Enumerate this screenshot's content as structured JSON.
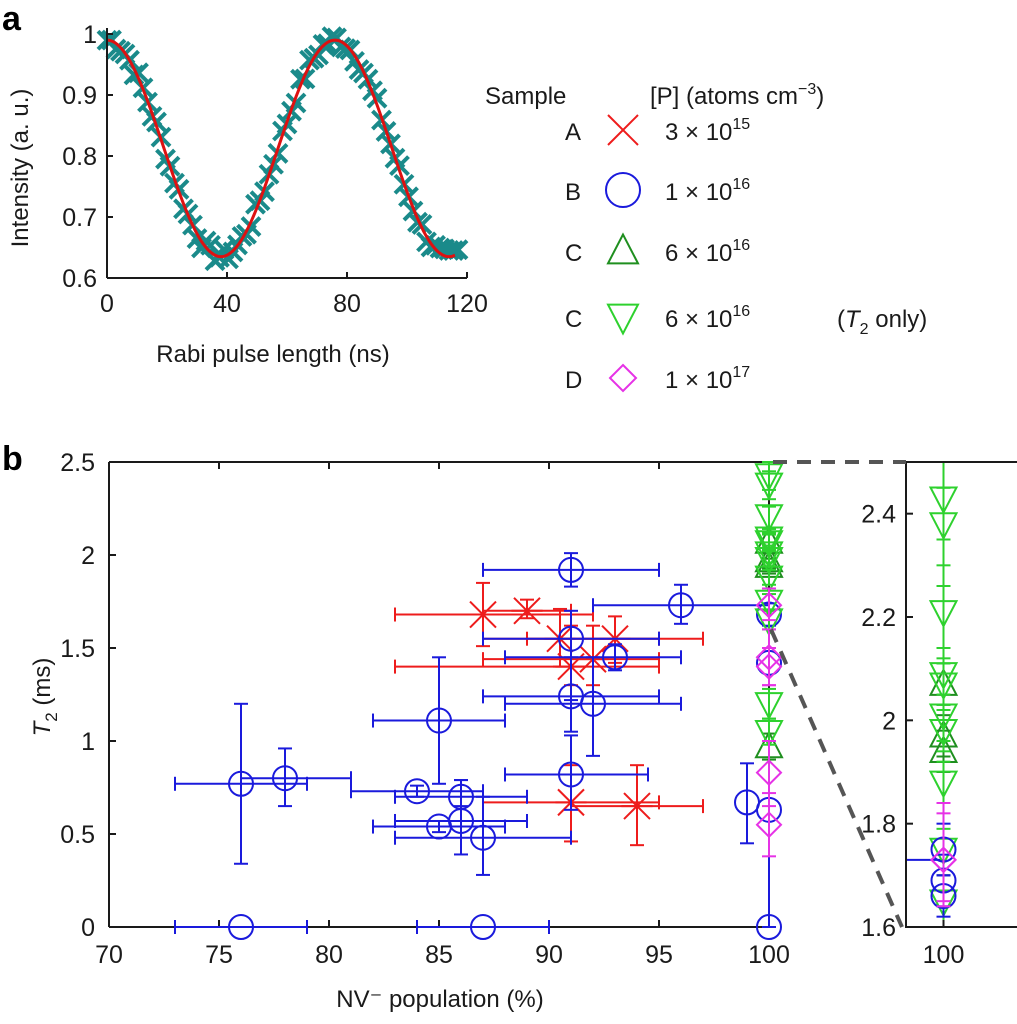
{
  "colors": {
    "sample_A": "#ee1c1c",
    "sample_B": "#1a1adc",
    "sample_C_up": "#1f8f1f",
    "sample_C_down": "#2ed12e",
    "sample_D": "#e632e6",
    "rabi_data": "#1a8a8a",
    "rabi_fit": "#dd1111",
    "axis": "#1a1a1a",
    "zoom_guide": "#555555"
  },
  "chart_data": [
    {
      "id": "a",
      "panel_label": "a",
      "type": "line",
      "title": "",
      "xlabel": "Rabi pulse length (ns)",
      "ylabel": "Intensity (a. u.)",
      "xlim": [
        0,
        120
      ],
      "ylim": [
        0.6,
        1.0
      ],
      "xticks": [
        0,
        40,
        80,
        120
      ],
      "xtick_labels": [
        "0",
        "40",
        "80",
        "120"
      ],
      "yticks": [
        0.6,
        0.7,
        0.8,
        0.9,
        1.0
      ],
      "ytick_labels": [
        "0.6",
        "0.7",
        "0.8",
        "0.9",
        "1"
      ],
      "grid": false,
      "series": [
        {
          "name": "Rabi data",
          "marker": "plus-x",
          "color_key": "rabi_data",
          "x_start": 0,
          "x_end": 117,
          "x_step": 1.5,
          "model": {
            "offset": 0.8125,
            "amplitude": 0.1775,
            "period_ns": 76,
            "scatter": 0.012
          }
        },
        {
          "name": "Fit",
          "marker": "none",
          "color_key": "rabi_fit",
          "x_start": 0,
          "x_end": 116,
          "model": {
            "offset": 0.8125,
            "amplitude": 0.1775,
            "period_ns": 76
          }
        }
      ]
    },
    {
      "id": "b",
      "panel_label": "b",
      "type": "scatter",
      "title": "",
      "xlabel": "NV⁻ population (%)",
      "ylabel_main": "T",
      "ylabel_sub": "2",
      "ylabel_unit": " (ms)",
      "xlim": [
        70,
        100
      ],
      "ylim": [
        0,
        2.5
      ],
      "xticks": [
        70,
        75,
        80,
        85,
        90,
        95,
        100
      ],
      "xtick_labels": [
        "70",
        "75",
        "80",
        "85",
        "90",
        "95",
        "100"
      ],
      "yticks": [
        0,
        0.5,
        1,
        1.5,
        2,
        2.5
      ],
      "ytick_labels": [
        "0",
        "0.5",
        "1",
        "1.5",
        "2",
        "2.5"
      ],
      "grid": false,
      "series": [
        {
          "name": "A",
          "marker": "x-star",
          "color_key": "sample_A",
          "points": [
            {
              "x": 87,
              "y": 1.68,
              "xerr": [
                83,
                92
              ],
              "yerr": [
                1.51,
                1.85
              ]
            },
            {
              "x": 89,
              "y": 1.7,
              "xerr": [
                87,
                91
              ],
              "yerr": [
                1.66,
                1.76
              ]
            },
            {
              "x": 90.5,
              "y": 1.55,
              "xerr": [
                87,
                97
              ],
              "yerr": [
                1.4,
                1.71
              ]
            },
            {
              "x": 92,
              "y": 1.44,
              "xerr": [
                87,
                95
              ],
              "yerr": [
                1.3,
                1.62
              ]
            },
            {
              "x": 93,
              "y": 1.55,
              "xerr": [
                89,
                95
              ],
              "yerr": [
                1.42,
                1.67
              ]
            },
            {
              "x": 91,
              "y": 1.4,
              "xerr": [
                83,
                95
              ],
              "yerr": [
                1.3,
                1.62
              ]
            },
            {
              "x": 91,
              "y": 0.67,
              "xerr": [
                87,
                95
              ],
              "yerr": [
                0.46,
                0.87
              ]
            },
            {
              "x": 94,
              "y": 0.65,
              "xerr": [
                91,
                97
              ],
              "yerr": [
                0.44,
                0.87
              ]
            }
          ]
        },
        {
          "name": "B",
          "marker": "circle",
          "color_key": "sample_B",
          "points": [
            {
              "x": 91,
              "y": 1.92,
              "xerr": [
                87,
                95
              ],
              "yerr": [
                1.83,
                2.01
              ]
            },
            {
              "x": 96,
              "y": 1.73,
              "xerr": [
                92,
                100
              ],
              "yerr": [
                1.63,
                1.84
              ]
            },
            {
              "x": 91,
              "y": 1.55,
              "xerr": [
                87,
                95
              ],
              "yerr": [
                1.22,
                1.7
              ]
            },
            {
              "x": 93,
              "y": 1.45,
              "xerr": [
                88,
                96
              ],
              "yerr": [
                1.38,
                1.52
              ]
            },
            {
              "x": 91,
              "y": 1.24,
              "xerr": [
                87,
                95
              ],
              "yerr": [
                1.05,
                1.45
              ]
            },
            {
              "x": 92,
              "y": 1.2,
              "xerr": [
                88,
                96
              ],
              "yerr": [
                0.92,
                1.45
              ]
            },
            {
              "x": 85,
              "y": 1.11,
              "xerr": [
                82,
                88
              ],
              "yerr": [
                0.77,
                1.45
              ]
            },
            {
              "x": 91,
              "y": 0.82,
              "xerr": [
                88,
                94.5
              ],
              "yerr": [
                0.63,
                1.03
              ]
            },
            {
              "x": 76,
              "y": 0.77,
              "xerr": [
                73,
                79
              ],
              "yerr": [
                0.34,
                1.2
              ]
            },
            {
              "x": 78,
              "y": 0.8,
              "xerr": [
                76,
                81
              ],
              "yerr": [
                0.65,
                0.96
              ]
            },
            {
              "x": 84,
              "y": 0.73,
              "xerr": [
                81,
                87
              ],
              "yerr": [
                0.7,
                0.76
              ]
            },
            {
              "x": 86,
              "y": 0.7,
              "xerr": [
                83,
                89
              ],
              "yerr": [
                0.65,
                0.79
              ]
            },
            {
              "x": 86,
              "y": 0.57,
              "xerr": [
                83,
                89
              ],
              "yerr": [
                0.39,
                0.79
              ]
            },
            {
              "x": 85,
              "y": 0.54,
              "xerr": [
                82,
                88
              ],
              "yerr": [
                0.51,
                0.57
              ]
            },
            {
              "x": 87,
              "y": 0.48,
              "xerr": [
                83,
                91
              ],
              "yerr": [
                0.28,
                0.7
              ]
            },
            {
              "x": 99,
              "y": 0.67,
              "xerr": [
                99,
                99
              ],
              "yerr": [
                0.45,
                0.88
              ]
            },
            {
              "x": 100,
              "y": 0.63,
              "xerr": [
                100,
                100
              ],
              "yerr": [
                0.63,
                0.63
              ]
            },
            {
              "x": 100,
              "y": 1.68,
              "xerr": [
                100,
                100
              ],
              "yerr": [
                1.62,
                1.74
              ]
            },
            {
              "x": 100,
              "y": 1.42,
              "xerr": [
                100,
                100
              ],
              "yerr": [
                1.42,
                1.42
              ]
            },
            {
              "x": 76,
              "y": 0,
              "xerr": [
                73,
                79
              ],
              "yerr": [
                0,
                0
              ]
            },
            {
              "x": 87,
              "y": 0,
              "xerr": [
                84,
                90
              ],
              "yerr": [
                0,
                0
              ]
            },
            {
              "x": 100,
              "y": 0,
              "xerr": [
                100,
                100
              ],
              "yerr": [
                0,
                1.0
              ]
            }
          ]
        },
        {
          "name": "C",
          "marker": "triangle-up",
          "color_key": "sample_C_up",
          "points": [
            {
              "x": 100,
              "y": 2.07,
              "xerr": [
                100,
                100
              ],
              "yerr": [
                2.03,
                2.11
              ]
            },
            {
              "x": 100,
              "y": 1.97,
              "xerr": [
                100,
                100
              ],
              "yerr": [
                1.93,
                2.01
              ]
            },
            {
              "x": 100,
              "y": 1.94,
              "xerr": [
                100,
                100
              ],
              "yerr": [
                1.9,
                1.98
              ]
            },
            {
              "x": 100,
              "y": 0.97,
              "xerr": [
                100,
                100
              ],
              "yerr": [
                0.9,
                1.04
              ]
            }
          ]
        },
        {
          "name": "C (T2 only)",
          "marker": "triangle-down",
          "color_key": "sample_C_down",
          "points": [
            {
              "x": 100,
              "y": 2.43,
              "xerr": [
                100,
                100
              ],
              "yerr": [
                2.35,
                2.5
              ]
            },
            {
              "x": 100,
              "y": 2.38,
              "xerr": [
                100,
                100
              ],
              "yerr": [
                2.3,
                2.45
              ]
            },
            {
              "x": 100,
              "y": 2.21,
              "xerr": [
                100,
                100
              ],
              "yerr": [
                2.14,
                2.26
              ]
            },
            {
              "x": 100,
              "y": 2.09,
              "xerr": [
                100,
                100
              ],
              "yerr": [
                2.05,
                2.12
              ]
            },
            {
              "x": 100,
              "y": 2.07,
              "xerr": [
                100,
                100
              ],
              "yerr": [
                2.03,
                2.11
              ]
            },
            {
              "x": 100,
              "y": 2.01,
              "xerr": [
                100,
                100
              ],
              "yerr": [
                1.96,
                2.05
              ]
            },
            {
              "x": 100,
              "y": 1.98,
              "xerr": [
                100,
                100
              ],
              "yerr": [
                1.94,
                2.02
              ]
            },
            {
              "x": 100,
              "y": 1.88,
              "xerr": [
                100,
                100
              ],
              "yerr": [
                1.84,
                1.92
              ]
            },
            {
              "x": 100,
              "y": 1.75,
              "xerr": [
                100,
                100
              ],
              "yerr": [
                1.7,
                1.79
              ]
            },
            {
              "x": 100,
              "y": 1.65,
              "xerr": [
                100,
                100
              ],
              "yerr": [
                1.6,
                1.7
              ]
            },
            {
              "x": 100,
              "y": 1.2,
              "xerr": [
                100,
                100
              ],
              "yerr": [
                1.12,
                1.28
              ]
            },
            {
              "x": 100,
              "y": 1.05,
              "xerr": [
                100,
                100
              ],
              "yerr": [
                0.98,
                1.12
              ]
            }
          ]
        },
        {
          "name": "D",
          "marker": "diamond",
          "color_key": "sample_D",
          "points": [
            {
              "x": 100,
              "y": 1.73,
              "xerr": [
                100,
                100
              ],
              "yerr": [
                1.65,
                1.82
              ]
            },
            {
              "x": 100,
              "y": 1.45,
              "xerr": [
                100,
                100
              ],
              "yerr": [
                1.3,
                1.6
              ]
            },
            {
              "x": 100,
              "y": 1.4,
              "xerr": [
                100,
                100
              ],
              "yerr": [
                1.3,
                1.5
              ]
            },
            {
              "x": 100,
              "y": 0.83,
              "xerr": [
                100,
                100
              ],
              "yerr": [
                0.65,
                1.0
              ]
            },
            {
              "x": 100,
              "y": 0.55,
              "xerr": [
                100,
                100
              ],
              "yerr": [
                0.38,
                0.72
              ]
            }
          ]
        }
      ]
    },
    {
      "id": "b-inset",
      "type": "scatter",
      "description": "Zoomed view of NV⁻ population = 100%",
      "xlim": [
        99.6,
        100.4
      ],
      "ylim": [
        1.6,
        2.5
      ],
      "xticks": [
        100
      ],
      "xtick_labels": [
        "100"
      ],
      "yticks": [
        1.6,
        1.8,
        2,
        2.2,
        2.4
      ],
      "ytick_labels": [
        "1.6",
        "1.8",
        "2",
        "2.2",
        "2.4"
      ],
      "grid": false,
      "series_ref": "b",
      "extra_points": [
        {
          "series": "B",
          "x": 100,
          "y": 1.75,
          "yerr": [
            1.7,
            1.8
          ]
        },
        {
          "series": "B",
          "x": 100,
          "y": 1.69,
          "yerr": [
            1.64,
            1.74
          ]
        },
        {
          "series": "B",
          "x": 100,
          "y": 1.66,
          "yerr": [
            1.62,
            1.7
          ]
        },
        {
          "series": "D",
          "x": 100,
          "y": 1.73,
          "yerr": [
            1.64,
            1.84
          ]
        }
      ]
    }
  ],
  "legend": {
    "header_sample": "Sample",
    "header_conc": "[P] (atoms cm",
    "header_conc_sup": "−3",
    "header_conc_close": ")",
    "placement": "top-right",
    "entries": [
      {
        "sample": "A",
        "marker": "x",
        "color_key": "sample_A",
        "mantissa": "3 × 10",
        "exponent": "15",
        "note": ""
      },
      {
        "sample": "B",
        "marker": "circle",
        "color_key": "sample_B",
        "mantissa": "1 × 10",
        "exponent": "16",
        "note": ""
      },
      {
        "sample": "C",
        "marker": "triangle-up",
        "color_key": "sample_C_up",
        "mantissa": "6 × 10",
        "exponent": "16",
        "note": ""
      },
      {
        "sample": "C",
        "marker": "triangle-down",
        "color_key": "sample_C_down",
        "mantissa": "6 × 10",
        "exponent": "16",
        "note_open": "(",
        "note_T": "T",
        "note_sub": "2",
        "note_rest": " only)"
      },
      {
        "sample": "D",
        "marker": "diamond",
        "color_key": "sample_D",
        "mantissa": "1 × 10",
        "exponent": "17",
        "note": ""
      }
    ]
  }
}
